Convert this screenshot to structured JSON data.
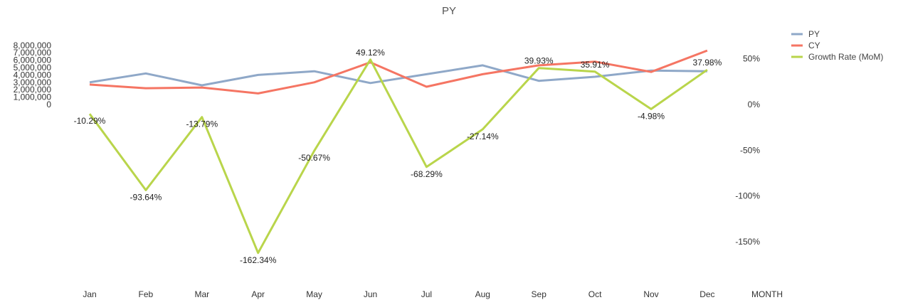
{
  "chart_data": {
    "type": "line",
    "title": "PY",
    "xlabel": "MONTH",
    "categories": [
      "Jan",
      "Feb",
      "Mar",
      "Apr",
      "May",
      "Jun",
      "Jul",
      "Aug",
      "Sep",
      "Oct",
      "Nov",
      "Dec"
    ],
    "left_axis": {
      "ylim": [
        0,
        8000000
      ],
      "ticks": [
        "0",
        "1,000,000",
        "2,000,000",
        "3,000,000",
        "4,000,000",
        "5,000,000",
        "6,000,000",
        "7,000,000",
        "8,000,000"
      ]
    },
    "right_axis": {
      "ylim": [
        -150,
        50
      ],
      "ticks": [
        "-150%",
        "-100%",
        "-50%",
        "0%",
        "50%"
      ]
    },
    "series": [
      {
        "name": "PY",
        "axis": "left",
        "color": "#8fa8c8",
        "values": [
          3000000,
          4200000,
          2600000,
          4000000,
          4500000,
          2900000,
          4100000,
          5300000,
          3200000,
          3750000,
          4600000,
          4500000
        ]
      },
      {
        "name": "CY",
        "axis": "left",
        "color": "#f57563",
        "values": [
          2700000,
          2200000,
          2300000,
          1500000,
          3000000,
          5700000,
          2400000,
          4100000,
          5300000,
          5800000,
          4400000,
          7300000
        ]
      },
      {
        "name": "Growth Rate (MoM)",
        "axis": "right",
        "color": "#b9d54b",
        "values": [
          -10.29,
          -93.64,
          -13.79,
          -162.34,
          -50.67,
          49.12,
          -68.29,
          -27.14,
          39.93,
          35.91,
          -4.98,
          37.98
        ],
        "labels": [
          "-10.29%",
          "-93.64%",
          "-13.79%",
          "-162.34%",
          "-50.67%",
          "49.12%",
          "-68.29%",
          "-27.14%",
          "39.93%",
          "35.91%",
          "-4.98%",
          "37.98%"
        ]
      }
    ],
    "legend": "top-right",
    "grid": false
  }
}
